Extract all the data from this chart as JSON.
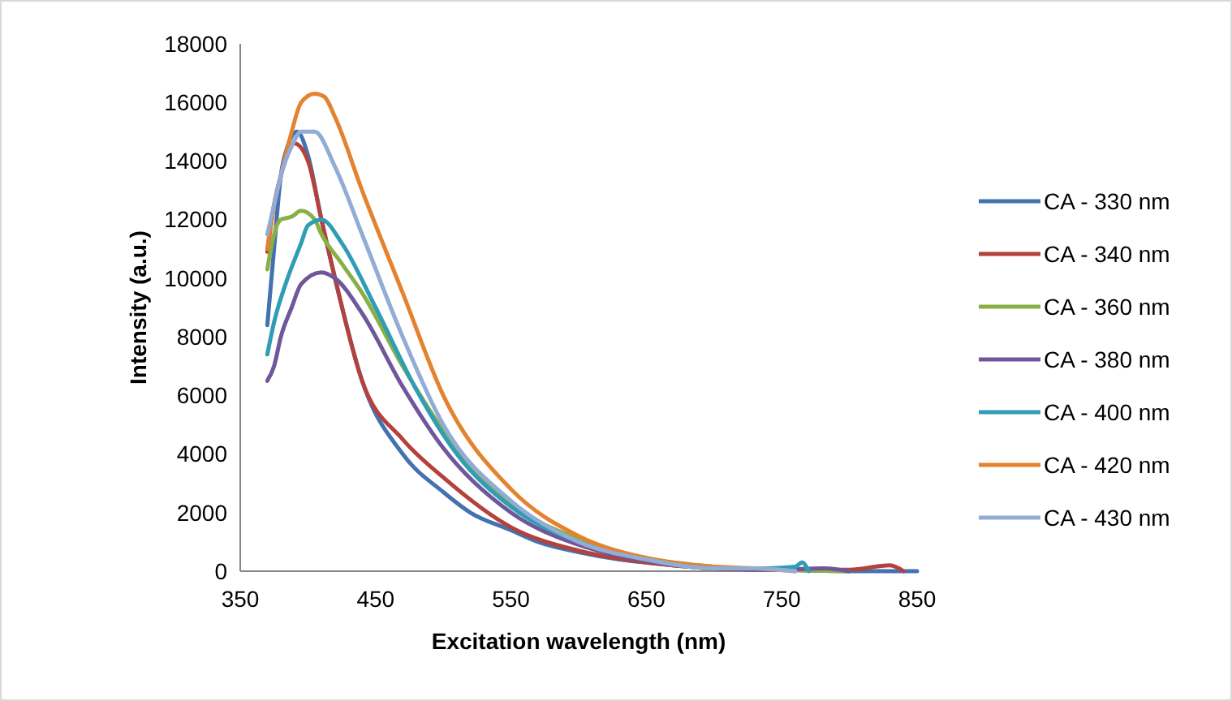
{
  "chart_data": {
    "type": "line",
    "xlabel": "Excitation wavelength (nm)",
    "ylabel": "Intensity (a.u.)",
    "xlim": [
      350,
      850
    ],
    "xticks": [
      350,
      450,
      550,
      650,
      750,
      850
    ],
    "ylim": [
      0,
      18000
    ],
    "yticks": [
      0,
      2000,
      4000,
      6000,
      8000,
      10000,
      12000,
      14000,
      16000,
      18000
    ],
    "grid": false,
    "legend": "right",
    "line_style": "solid",
    "series": [
      {
        "name": "CA - 330 nm",
        "color": "#4372b0",
        "x": [
          370,
          375,
          380,
          385,
          392,
          400,
          410,
          420,
          440,
          470,
          500,
          520,
          550,
          570,
          600,
          630,
          660,
          700,
          750,
          800,
          850
        ],
        "values": [
          8400,
          11000,
          13500,
          14500,
          15000,
          14200,
          12000,
          10000,
          6500,
          4000,
          2700,
          2000,
          1400,
          1000,
          650,
          400,
          250,
          100,
          50,
          0,
          0
        ]
      },
      {
        "name": "CA - 340 nm",
        "color": "#b5413c",
        "x": [
          370,
          375,
          380,
          390,
          400,
          410,
          420,
          440,
          470,
          500,
          550,
          600,
          650,
          700,
          750,
          800,
          830,
          840
        ],
        "values": [
          10900,
          12500,
          13500,
          14600,
          14000,
          12000,
          10000,
          6500,
          4500,
          3200,
          1500,
          700,
          300,
          100,
          50,
          50,
          200,
          0
        ]
      },
      {
        "name": "CA - 360 nm",
        "color": "#8aaf47",
        "x": [
          370,
          375,
          380,
          388,
          395,
          405,
          410,
          425,
          440,
          470,
          500,
          550,
          600,
          650,
          700,
          750,
          800
        ],
        "values": [
          10300,
          11500,
          12000,
          12100,
          12300,
          12000,
          11500,
          10500,
          9500,
          7000,
          4800,
          2300,
          1100,
          450,
          150,
          50,
          0
        ]
      },
      {
        "name": "CA - 380 nm",
        "color": "#70579a",
        "x": [
          370,
          375,
          380,
          388,
          395,
          410,
          420,
          440,
          470,
          500,
          550,
          600,
          650,
          700,
          750,
          780,
          800
        ],
        "values": [
          6500,
          7000,
          8000,
          9000,
          9800,
          10200,
          10000,
          8800,
          6300,
          4200,
          2000,
          900,
          350,
          100,
          50,
          100,
          0
        ]
      },
      {
        "name": "CA - 400 nm",
        "color": "#2f9db4",
        "x": [
          370,
          375,
          385,
          395,
          400,
          410,
          425,
          450,
          480,
          510,
          550,
          600,
          650,
          700,
          740,
          760,
          765,
          770
        ],
        "values": [
          7400,
          8500,
          10000,
          11200,
          11800,
          12000,
          11200,
          9000,
          6200,
          4000,
          2200,
          1000,
          400,
          100,
          100,
          150,
          300,
          0
        ]
      },
      {
        "name": "CA - 420 nm",
        "color": "#e4832f",
        "x": [
          370,
          375,
          380,
          388,
          395,
          405,
          412,
          420,
          440,
          470,
          500,
          550,
          600,
          650,
          700,
          730,
          760
        ],
        "values": [
          11000,
          12500,
          13500,
          15000,
          16000,
          16300,
          16200,
          15500,
          13000,
          9500,
          6000,
          2800,
          1200,
          450,
          150,
          100,
          0
        ]
      },
      {
        "name": "CA - 430 nm",
        "color": "#92acd6",
        "x": [
          370,
          375,
          380,
          388,
          395,
          405,
          420,
          440,
          470,
          500,
          550,
          600,
          650,
          700,
          730,
          760
        ],
        "values": [
          11500,
          12500,
          13500,
          14500,
          15000,
          15000,
          13800,
          11500,
          8000,
          5000,
          2400,
          1000,
          400,
          100,
          100,
          0
        ]
      }
    ]
  }
}
